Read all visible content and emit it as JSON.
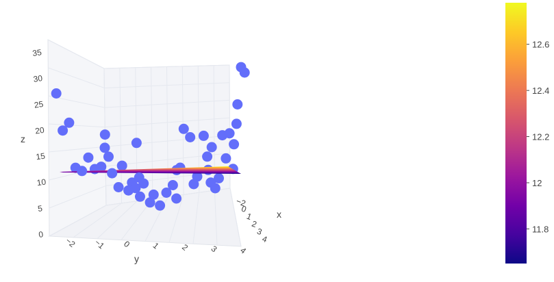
{
  "chart_data": {
    "type": "scatter3d",
    "axes": {
      "x": {
        "title": "x",
        "tick_labels": [
          "−2",
          "0",
          "1",
          "2",
          "3",
          "4"
        ],
        "range": [
          -2,
          4
        ]
      },
      "y": {
        "title": "y",
        "tick_labels": [
          "−2",
          "−1",
          "0",
          "1",
          "2",
          "3",
          "4"
        ],
        "range": [
          -2.5,
          4
        ]
      },
      "z": {
        "title": "z",
        "tick_labels": [
          "35",
          "30",
          "25",
          "20",
          "15",
          "10",
          "5",
          "0"
        ],
        "range": [
          0,
          37
        ]
      }
    },
    "grid": true,
    "points_color": "#636efa",
    "points": [
      {
        "y": -2.4,
        "z": 26
      },
      {
        "y": -2.2,
        "z": 19.5
      },
      {
        "y": -2.0,
        "z": 21
      },
      {
        "y": -1.8,
        "z": 13
      },
      {
        "y": -1.6,
        "z": 12.5
      },
      {
        "y": -1.4,
        "z": 15
      },
      {
        "y": -1.2,
        "z": 13
      },
      {
        "y": -1.0,
        "z": 13.5
      },
      {
        "y": -0.9,
        "z": 17
      },
      {
        "y": -0.7,
        "z": 19.5
      },
      {
        "y": -0.6,
        "z": 15.5
      },
      {
        "y": -0.5,
        "z": 12.5
      },
      {
        "y": -0.3,
        "z": 10
      },
      {
        "y": -0.2,
        "z": 14
      },
      {
        "y": 0.0,
        "z": 9.5
      },
      {
        "y": 0.1,
        "z": 11
      },
      {
        "y": 0.2,
        "z": 10
      },
      {
        "y": 0.3,
        "z": 12
      },
      {
        "y": 0.4,
        "z": 18.5
      },
      {
        "y": 0.5,
        "z": 8.5
      },
      {
        "y": 0.6,
        "z": 11
      },
      {
        "y": 0.8,
        "z": 7.5
      },
      {
        "y": 0.9,
        "z": 9
      },
      {
        "y": 1.1,
        "z": 7
      },
      {
        "y": 1.3,
        "z": 9.5
      },
      {
        "y": 1.5,
        "z": 11
      },
      {
        "y": 1.6,
        "z": 8.5
      },
      {
        "y": 1.8,
        "z": 14
      },
      {
        "y": 1.9,
        "z": 14.5
      },
      {
        "y": 2.0,
        "z": 22
      },
      {
        "y": 2.2,
        "z": 20.5
      },
      {
        "y": 2.3,
        "z": 11.5
      },
      {
        "y": 2.4,
        "z": 13
      },
      {
        "y": 2.6,
        "z": 21
      },
      {
        "y": 2.7,
        "z": 17
      },
      {
        "y": 2.8,
        "z": 12
      },
      {
        "y": 2.9,
        "z": 14.5
      },
      {
        "y": 3.0,
        "z": 19
      },
      {
        "y": 3.1,
        "z": 11
      },
      {
        "y": 3.2,
        "z": 13
      },
      {
        "y": 3.3,
        "z": 21.5
      },
      {
        "y": 3.4,
        "z": 17
      },
      {
        "y": 3.5,
        "z": 22
      },
      {
        "y": 3.6,
        "z": 15
      },
      {
        "y": 3.7,
        "z": 24
      },
      {
        "y": 3.8,
        "z": 20
      },
      {
        "y": 3.9,
        "z": 28
      },
      {
        "y": 4.0,
        "z": 35.5
      },
      {
        "y": 4.1,
        "z": 34.5
      }
    ],
    "surface": {
      "colorscale": [
        "#0d0887",
        "#46039f",
        "#7201a8",
        "#9c179e",
        "#bd3786",
        "#d8576b",
        "#ed7953",
        "#fb9f3a",
        "#fdca26",
        "#f0f921"
      ],
      "color_range": [
        11.65,
        12.78
      ]
    },
    "colorbar": {
      "tick_labels": [
        "12.6",
        "12.4",
        "12.2",
        "12",
        "11.8"
      ],
      "tick_values": [
        12.6,
        12.4,
        12.2,
        12.0,
        11.8
      ]
    }
  }
}
